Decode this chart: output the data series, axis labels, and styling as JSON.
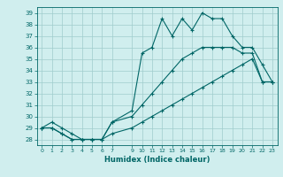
{
  "title": "",
  "xlabel": "Humidex (Indice chaleur)",
  "bg_color": "#d0eeee",
  "grid_color": "#a0cccc",
  "line_color": "#006666",
  "xlim": [
    -0.5,
    23.5
  ],
  "ylim": [
    27.5,
    39.5
  ],
  "xticks": [
    0,
    1,
    2,
    3,
    4,
    5,
    6,
    7,
    9,
    10,
    11,
    12,
    13,
    14,
    15,
    16,
    17,
    18,
    19,
    20,
    21,
    22,
    23
  ],
  "yticks": [
    28,
    29,
    30,
    31,
    32,
    33,
    34,
    35,
    36,
    37,
    38,
    39
  ],
  "hours": [
    0,
    1,
    2,
    3,
    4,
    5,
    6,
    7,
    9,
    10,
    11,
    12,
    13,
    14,
    15,
    16,
    17,
    18,
    19,
    20,
    21,
    22,
    23
  ],
  "line_top": [
    29,
    29.5,
    29,
    28.5,
    28,
    28,
    28,
    29.5,
    30.5,
    35.5,
    36,
    38.5,
    37,
    38.5,
    37.5,
    39,
    38.5,
    38.5,
    37,
    36,
    36,
    34.5,
    33
  ],
  "line_mid": [
    29,
    29,
    28.5,
    28,
    28,
    28,
    28,
    29.5,
    30,
    31,
    32,
    33,
    34,
    35,
    35.5,
    36,
    36,
    36,
    36,
    35.5,
    35.5,
    33,
    33
  ],
  "line_bot": [
    29,
    29,
    28.5,
    28,
    28,
    28,
    28,
    28.5,
    29,
    29.5,
    30,
    30.5,
    31,
    31.5,
    32,
    32.5,
    33,
    33.5,
    34,
    34.5,
    35,
    33,
    33
  ]
}
